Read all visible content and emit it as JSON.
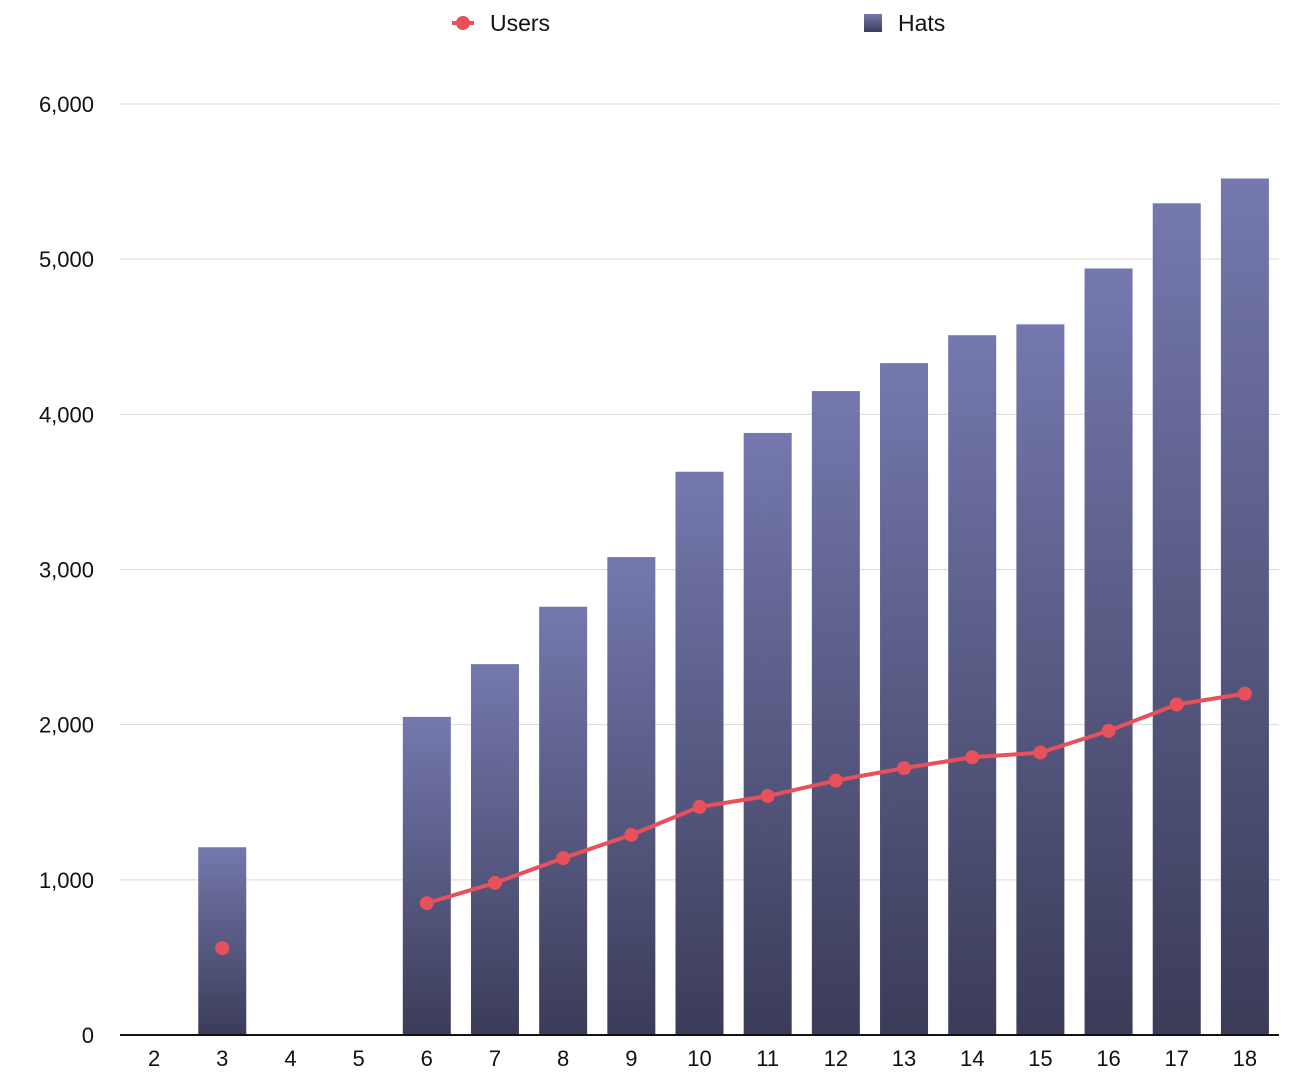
{
  "chart_data": {
    "type": "bar",
    "categories": [
      "2",
      "3",
      "4",
      "5",
      "6",
      "7",
      "8",
      "9",
      "10",
      "11",
      "12",
      "13",
      "14",
      "15",
      "16",
      "17",
      "18"
    ],
    "series": [
      {
        "name": "Users",
        "type": "line",
        "color": "#e8505b",
        "values": [
          null,
          560,
          null,
          null,
          850,
          980,
          1140,
          1290,
          1470,
          1540,
          1640,
          1720,
          1790,
          1820,
          1960,
          2130,
          2200
        ]
      },
      {
        "name": "Hats",
        "type": "bar",
        "color": "#6f74a8",
        "color_dark": "#3b3c58",
        "values": [
          null,
          1210,
          null,
          null,
          2050,
          2390,
          2760,
          3080,
          3630,
          3880,
          4150,
          4330,
          4510,
          4580,
          4940,
          5360,
          5520
        ]
      }
    ],
    "ylim": [
      0,
      6000
    ],
    "yticks": [
      0,
      1000,
      2000,
      3000,
      4000,
      5000,
      6000
    ],
    "ytick_labels": [
      "0",
      "1,000",
      "2,000",
      "3,000",
      "4,000",
      "5,000",
      "6,000"
    ],
    "legend_position": "top",
    "grid": true,
    "title": "",
    "xlabel": "",
    "ylabel": ""
  }
}
